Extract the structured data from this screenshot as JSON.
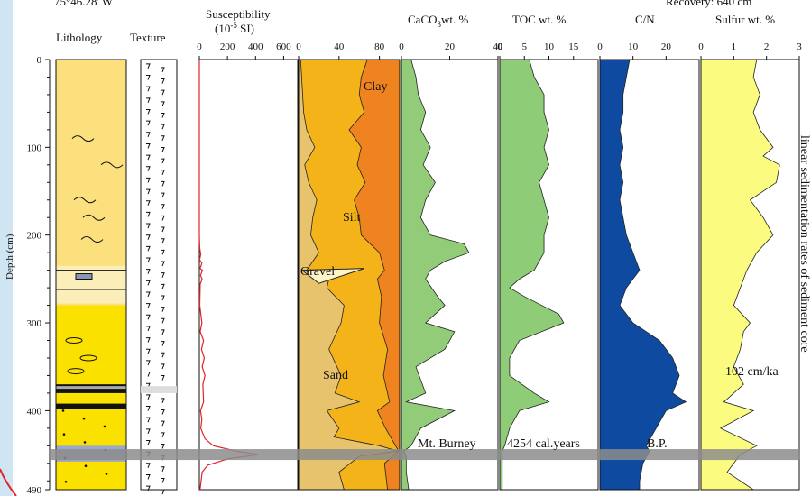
{
  "header": {
    "left_partial": "75°46.28' W",
    "right_partial": "Recovery: 640 cm"
  },
  "chart_data": {
    "type": "line",
    "y_axis": {
      "label": "Depth (cm)",
      "range": [
        0,
        490
      ],
      "ticks": [
        0,
        100,
        200,
        300,
        400,
        490
      ]
    },
    "lithology_title": "Lithology",
    "texture_title": "Texture",
    "susceptibility": {
      "title_line1": "Susceptibility",
      "title_line2": "(10-5 SI)",
      "unit_sup": "-5",
      "unit_pre": "(10",
      "unit_post": " SI)",
      "range": [
        0,
        700
      ],
      "ticks": [
        0,
        200,
        400,
        600
      ],
      "points": [
        [
          0,
          0
        ],
        [
          0,
          200
        ],
        [
          3,
          215
        ],
        [
          10,
          222
        ],
        [
          2,
          228
        ],
        [
          18,
          232
        ],
        [
          5,
          238
        ],
        [
          22,
          240
        ],
        [
          8,
          246
        ],
        [
          20,
          250
        ],
        [
          6,
          256
        ],
        [
          3,
          280
        ],
        [
          18,
          300
        ],
        [
          6,
          310
        ],
        [
          30,
          320
        ],
        [
          15,
          330
        ],
        [
          35,
          340
        ],
        [
          20,
          350
        ],
        [
          40,
          360
        ],
        [
          25,
          370
        ],
        [
          30,
          390
        ],
        [
          8,
          400
        ],
        [
          18,
          410
        ],
        [
          10,
          420
        ],
        [
          40,
          432
        ],
        [
          100,
          440
        ],
        [
          260,
          446
        ],
        [
          420,
          450
        ],
        [
          200,
          455
        ],
        [
          60,
          462
        ],
        [
          20,
          470
        ],
        [
          5,
          490
        ]
      ]
    },
    "grain_size": {
      "ticks": [
        0,
        40,
        80
      ],
      "range": [
        0,
        100
      ],
      "labels": {
        "clay": "Clay",
        "silt": "Silt",
        "gravel": "Gravel",
        "sand": "Sand"
      },
      "sand_upper": [
        [
          0,
          2
        ],
        [
          40,
          4
        ],
        [
          60,
          5
        ],
        [
          80,
          8
        ],
        [
          100,
          16
        ],
        [
          120,
          6
        ],
        [
          140,
          10
        ],
        [
          160,
          18
        ],
        [
          180,
          14
        ],
        [
          200,
          12
        ],
        [
          220,
          20
        ],
        [
          240,
          8
        ],
        [
          250,
          30
        ],
        [
          260,
          28
        ],
        [
          280,
          45
        ],
        [
          300,
          42
        ],
        [
          330,
          30
        ],
        [
          360,
          42
        ],
        [
          380,
          36
        ],
        [
          390,
          60
        ],
        [
          400,
          28
        ],
        [
          420,
          40
        ],
        [
          430,
          35
        ],
        [
          440,
          80
        ],
        [
          446,
          98
        ],
        [
          452,
          60
        ],
        [
          470,
          40
        ],
        [
          490,
          45
        ]
      ],
      "silt_upper": [
        [
          0,
          68
        ],
        [
          20,
          62
        ],
        [
          40,
          60
        ],
        [
          60,
          65
        ],
        [
          80,
          50
        ],
        [
          100,
          62
        ],
        [
          120,
          58
        ],
        [
          140,
          66
        ],
        [
          160,
          55
        ],
        [
          180,
          60
        ],
        [
          200,
          62
        ],
        [
          220,
          80
        ],
        [
          240,
          85
        ],
        [
          250,
          78
        ],
        [
          270,
          82
        ],
        [
          300,
          80
        ],
        [
          330,
          88
        ],
        [
          360,
          84
        ],
        [
          390,
          90
        ],
        [
          400,
          78
        ],
        [
          420,
          86
        ],
        [
          440,
          96
        ],
        [
          446,
          99
        ],
        [
          460,
          85
        ],
        [
          490,
          88
        ]
      ]
    },
    "caco3": {
      "title": "CaCO3wt. %",
      "title_main": "CaCO",
      "title_sub": "3",
      "title_tail": "wt. %",
      "range": [
        0,
        40
      ],
      "ticks": [
        0,
        20,
        40
      ],
      "points": [
        [
          0,
          4
        ],
        [
          20,
          6
        ],
        [
          40,
          7
        ],
        [
          60,
          10
        ],
        [
          80,
          8
        ],
        [
          100,
          12
        ],
        [
          120,
          9
        ],
        [
          140,
          14
        ],
        [
          160,
          10
        ],
        [
          180,
          8
        ],
        [
          200,
          12
        ],
        [
          210,
          26
        ],
        [
          220,
          28
        ],
        [
          230,
          18
        ],
        [
          240,
          12
        ],
        [
          250,
          10
        ],
        [
          270,
          15
        ],
        [
          280,
          18
        ],
        [
          300,
          10
        ],
        [
          310,
          22
        ],
        [
          330,
          18
        ],
        [
          350,
          6
        ],
        [
          380,
          10
        ],
        [
          390,
          2
        ],
        [
          400,
          22
        ],
        [
          420,
          8
        ],
        [
          440,
          4
        ],
        [
          446,
          1
        ],
        [
          452,
          2
        ],
        [
          470,
          2
        ],
        [
          490,
          3
        ]
      ]
    },
    "toc": {
      "title": "TOC wt. %",
      "range": [
        0,
        20
      ],
      "ticks": [
        0,
        5,
        10,
        15
      ],
      "points": [
        [
          0,
          6
        ],
        [
          20,
          7
        ],
        [
          40,
          9
        ],
        [
          60,
          9
        ],
        [
          80,
          10
        ],
        [
          100,
          9
        ],
        [
          120,
          10
        ],
        [
          140,
          8
        ],
        [
          160,
          9
        ],
        [
          180,
          10
        ],
        [
          200,
          9
        ],
        [
          220,
          9
        ],
        [
          240,
          7
        ],
        [
          250,
          4
        ],
        [
          260,
          2
        ],
        [
          270,
          5
        ],
        [
          290,
          12
        ],
        [
          300,
          13
        ],
        [
          320,
          4
        ],
        [
          340,
          2
        ],
        [
          360,
          2
        ],
        [
          380,
          7
        ],
        [
          390,
          10
        ],
        [
          400,
          4
        ],
        [
          420,
          2
        ],
        [
          440,
          1
        ],
        [
          446,
          0.5
        ],
        [
          470,
          0.5
        ],
        [
          490,
          0.5
        ]
      ]
    },
    "cn": {
      "title": "C/N",
      "range": [
        0,
        30
      ],
      "ticks": [
        0,
        10,
        20
      ],
      "points": [
        [
          0,
          9
        ],
        [
          20,
          8
        ],
        [
          40,
          7
        ],
        [
          60,
          7
        ],
        [
          80,
          6
        ],
        [
          100,
          7
        ],
        [
          120,
          6
        ],
        [
          140,
          7
        ],
        [
          160,
          6
        ],
        [
          180,
          7
        ],
        [
          200,
          8
        ],
        [
          220,
          10
        ],
        [
          240,
          12
        ],
        [
          250,
          10
        ],
        [
          260,
          8
        ],
        [
          280,
          6
        ],
        [
          300,
          10
        ],
        [
          320,
          18
        ],
        [
          340,
          22
        ],
        [
          360,
          24
        ],
        [
          380,
          22
        ],
        [
          390,
          26
        ],
        [
          400,
          20
        ],
        [
          420,
          17
        ],
        [
          440,
          14
        ],
        [
          446,
          15
        ],
        [
          460,
          13
        ],
        [
          480,
          12
        ],
        [
          490,
          12
        ]
      ]
    },
    "sulfur": {
      "title": "Sulfur wt. %",
      "range": [
        0,
        3
      ],
      "ticks": [
        0,
        1,
        2,
        3
      ],
      "points": [
        [
          0,
          1.7
        ],
        [
          20,
          1.6
        ],
        [
          40,
          1.8
        ],
        [
          60,
          1.6
        ],
        [
          80,
          1.8
        ],
        [
          100,
          2.2
        ],
        [
          110,
          1.9
        ],
        [
          120,
          2.4
        ],
        [
          140,
          2.3
        ],
        [
          160,
          1.5
        ],
        [
          180,
          1.9
        ],
        [
          200,
          2.2
        ],
        [
          220,
          1.7
        ],
        [
          240,
          1.4
        ],
        [
          260,
          1.2
        ],
        [
          280,
          1.0
        ],
        [
          300,
          1.5
        ],
        [
          310,
          1.3
        ],
        [
          330,
          1.2
        ],
        [
          350,
          1.0
        ],
        [
          370,
          1.3
        ],
        [
          390,
          0.7
        ],
        [
          400,
          1.6
        ],
        [
          420,
          0.6
        ],
        [
          440,
          1.7
        ],
        [
          450,
          1.2
        ],
        [
          470,
          0.8
        ],
        [
          490,
          1.6
        ]
      ]
    },
    "annotations": {
      "burney": "Mt. Burney",
      "age": "4254 cal.years",
      "bp": "B.P.",
      "rate": "102 cm/ka",
      "side": "linear sedimentation rates of sediment core"
    },
    "tephra_depth": 450,
    "colors": {
      "lith_light": "#fde07e",
      "lith_dark": "#fbe100",
      "sand": "#e8c36e",
      "silt": "#f5b31a",
      "clay": "#ee8320",
      "caco3": "#92cc78",
      "toc": "#8fcc78",
      "cn": "#0f4aa1",
      "sulfur": "#fbfb80",
      "susc": "#e0242a",
      "tephra": "#8c8c8c"
    }
  }
}
